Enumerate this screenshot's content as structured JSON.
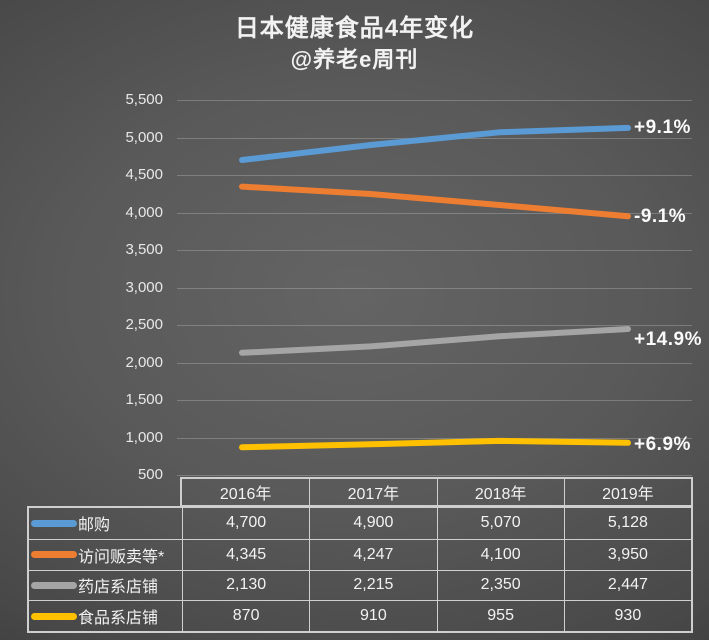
{
  "title": "日本健康食品4年变化",
  "subtitle": "@养老e周刊",
  "chart_data": {
    "type": "line",
    "categories": [
      "2016年",
      "2017年",
      "2018年",
      "2019年"
    ],
    "series": [
      {
        "name": "邮购",
        "values": [
          4700,
          4900,
          5070,
          5128
        ],
        "change_label": "+9.1%",
        "color": "#5B9BD5"
      },
      {
        "name": "访问贩卖等*",
        "values": [
          4345,
          4247,
          4100,
          3950
        ],
        "change_label": "-9.1%",
        "color": "#ED7D31"
      },
      {
        "name": "药店系店铺",
        "values": [
          2130,
          2215,
          2350,
          2447
        ],
        "change_label": "+14.9%",
        "color": "#A5A5A5"
      },
      {
        "name": "食品系店铺",
        "values": [
          870,
          910,
          955,
          930
        ],
        "change_label": "+6.9%",
        "color": "#FFC000"
      }
    ],
    "table_values": [
      [
        "4,700",
        "4,900",
        "5,070",
        "5,128"
      ],
      [
        "4,345",
        "4,247",
        "4,100",
        "3,950"
      ],
      [
        "2,130",
        "2,215",
        "2,350",
        "2,447"
      ],
      [
        "870",
        "910",
        "955",
        "930"
      ]
    ],
    "ylim": [
      500,
      5500
    ],
    "ytick_step": 500,
    "ytick_labels": [
      "5,500",
      "5,000",
      "4,500",
      "4,000",
      "3,500",
      "3,000",
      "2,500",
      "2,000",
      "1,500",
      "1,000",
      "500"
    ],
    "grid": true,
    "legend_position": "table-left",
    "background_color_center": "#606060",
    "background_color_edge": "#272727",
    "gridline_color": "rgba(255,255,255,0.22)"
  }
}
